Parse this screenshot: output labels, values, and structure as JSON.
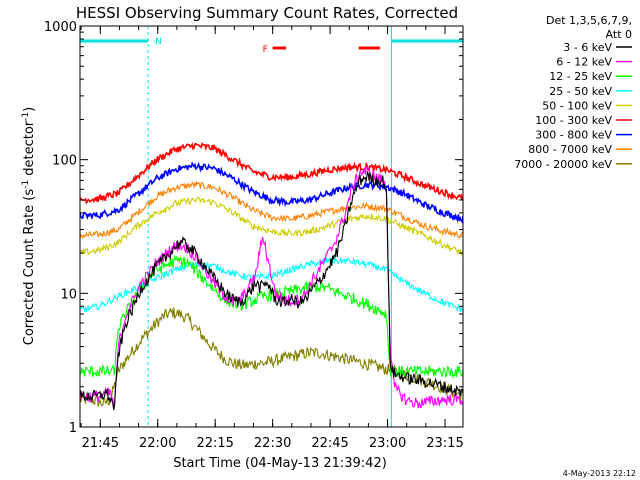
{
  "chart_data": {
    "type": "line",
    "title": "HESSI Observing Summary Count Rates, Corrected",
    "xlabel": "Start Time (04-May-13 21:39:42)",
    "ylabel": "Corrected Count Rate (s⁻¹ detector⁻¹)",
    "ylabel_parts": [
      "Corrected Count Rate (s",
      "-1",
      " detector",
      "-1",
      ")"
    ],
    "yscale": "log",
    "ylim": [
      1,
      1000
    ],
    "xlim_minutes": [
      0,
      100
    ],
    "x_ticks": [
      "21:45",
      "22:00",
      "22:15",
      "22:30",
      "22:45",
      "23:00",
      "23:15"
    ],
    "y_ticks": [
      "1",
      "10",
      "100",
      "1000"
    ],
    "legend_header": [
      "Det 1,3,5,6,7,9,",
      "Att 0"
    ],
    "legend_position": "right",
    "footer_date": "4-May-2013 22:12",
    "annotations": {
      "night_marker_label": "N",
      "flare_marker_label": "F",
      "night_intervals": [
        [
          "21:39:42",
          "21:57:30"
        ],
        [
          "23:01:00",
          "23:21:00"
        ]
      ],
      "flare_intervals": [
        [
          "22:30:00",
          "22:33:30"
        ],
        [
          "22:52:30",
          "22:58:00"
        ]
      ],
      "night_color": "#00e0e0",
      "flare_color": "#ff0000"
    },
    "series": [
      {
        "name": "3 - 6 keV",
        "color": "#000000",
        "points": [
          [
            0,
            1.7
          ],
          [
            5,
            1.7
          ],
          [
            7,
            1.8
          ],
          [
            9,
            1.4
          ],
          [
            10,
            3.5
          ],
          [
            12,
            6
          ],
          [
            14,
            8
          ],
          [
            16,
            11
          ],
          [
            18,
            13
          ],
          [
            20,
            16
          ],
          [
            22,
            18
          ],
          [
            24,
            21
          ],
          [
            26,
            24
          ],
          [
            28,
            23
          ],
          [
            30,
            20
          ],
          [
            32,
            17
          ],
          [
            34,
            14
          ],
          [
            36,
            12
          ],
          [
            38,
            10
          ],
          [
            40,
            9
          ],
          [
            42,
            8.5
          ],
          [
            44,
            10
          ],
          [
            46,
            12
          ],
          [
            47,
            11
          ],
          [
            49,
            12
          ],
          [
            51,
            9
          ],
          [
            53,
            8.5
          ],
          [
            55,
            9
          ],
          [
            57,
            8.5
          ],
          [
            59,
            9
          ],
          [
            61,
            11
          ],
          [
            63,
            13
          ],
          [
            65,
            16
          ],
          [
            67,
            20
          ],
          [
            69,
            30
          ],
          [
            71,
            50
          ],
          [
            73,
            70
          ],
          [
            75,
            75
          ],
          [
            77,
            70
          ],
          [
            79,
            70
          ],
          [
            80,
            62
          ],
          [
            81,
            3
          ],
          [
            82,
            2.5
          ],
          [
            86,
            2.3
          ],
          [
            90,
            2.2
          ],
          [
            95,
            2
          ],
          [
            100,
            1.8
          ]
        ]
      },
      {
        "name": "6 - 12 keV",
        "color": "#ff00ff",
        "points": [
          [
            0,
            1.7
          ],
          [
            5,
            1.7
          ],
          [
            8,
            1.8
          ],
          [
            9,
            1.4
          ],
          [
            10,
            4
          ],
          [
            12,
            7
          ],
          [
            14,
            9
          ],
          [
            16,
            12
          ],
          [
            18,
            14
          ],
          [
            20,
            17
          ],
          [
            22,
            19
          ],
          [
            24,
            22
          ],
          [
            26,
            23
          ],
          [
            28,
            22
          ],
          [
            30,
            19
          ],
          [
            32,
            16
          ],
          [
            34,
            13
          ],
          [
            36,
            11
          ],
          [
            38,
            9.5
          ],
          [
            40,
            8.5
          ],
          [
            42,
            9
          ],
          [
            44,
            11
          ],
          [
            46,
            14
          ],
          [
            47,
            22
          ],
          [
            48,
            26
          ],
          [
            49,
            18
          ],
          [
            51,
            10
          ],
          [
            53,
            9
          ],
          [
            55,
            8.8
          ],
          [
            57,
            9
          ],
          [
            59,
            10
          ],
          [
            61,
            13
          ],
          [
            63,
            16
          ],
          [
            65,
            20
          ],
          [
            67,
            26
          ],
          [
            69,
            38
          ],
          [
            71,
            60
          ],
          [
            73,
            80
          ],
          [
            75,
            82
          ],
          [
            77,
            75
          ],
          [
            79,
            70
          ],
          [
            80,
            60
          ],
          [
            81,
            4
          ],
          [
            82,
            2
          ],
          [
            85,
            1.6
          ],
          [
            88,
            1.5
          ],
          [
            95,
            1.6
          ],
          [
            100,
            1.6
          ]
        ]
      },
      {
        "name": "12 - 25 keV",
        "color": "#00ff00",
        "points": [
          [
            0,
            2.6
          ],
          [
            7,
            2.6
          ],
          [
            9,
            2.6
          ],
          [
            10,
            5.5
          ],
          [
            12,
            7
          ],
          [
            14,
            9
          ],
          [
            16,
            11
          ],
          [
            18,
            13
          ],
          [
            20,
            15
          ],
          [
            22,
            16
          ],
          [
            24,
            17
          ],
          [
            26,
            17.5
          ],
          [
            28,
            17
          ],
          [
            30,
            15
          ],
          [
            32,
            13
          ],
          [
            34,
            11.5
          ],
          [
            36,
            10
          ],
          [
            38,
            9
          ],
          [
            40,
            8.5
          ],
          [
            42,
            8.2
          ],
          [
            44,
            8.5
          ],
          [
            46,
            9
          ],
          [
            48,
            9.5
          ],
          [
            50,
            9.8
          ],
          [
            52,
            10
          ],
          [
            54,
            10.2
          ],
          [
            56,
            10.5
          ],
          [
            58,
            10.8
          ],
          [
            60,
            11
          ],
          [
            62,
            11.2
          ],
          [
            64,
            11
          ],
          [
            66,
            10.5
          ],
          [
            68,
            10
          ],
          [
            70,
            9.5
          ],
          [
            72,
            9
          ],
          [
            74,
            8.5
          ],
          [
            76,
            8
          ],
          [
            78,
            7.5
          ],
          [
            80,
            7
          ],
          [
            81,
            2.6
          ],
          [
            85,
            2.6
          ],
          [
            90,
            2.6
          ],
          [
            95,
            2.6
          ],
          [
            100,
            2.6
          ]
        ]
      },
      {
        "name": "25 - 50 keV",
        "color": "#00ffff",
        "points": [
          [
            0,
            7.5
          ],
          [
            5,
            8
          ],
          [
            10,
            9.5
          ],
          [
            15,
            11
          ],
          [
            20,
            13
          ],
          [
            25,
            15
          ],
          [
            30,
            16.5
          ],
          [
            35,
            16
          ],
          [
            40,
            14
          ],
          [
            45,
            13
          ],
          [
            50,
            13.5
          ],
          [
            55,
            15
          ],
          [
            60,
            16.5
          ],
          [
            65,
            17.5
          ],
          [
            70,
            17.5
          ],
          [
            75,
            16.5
          ],
          [
            80,
            15
          ],
          [
            85,
            12
          ],
          [
            90,
            10
          ],
          [
            95,
            8.5
          ],
          [
            100,
            7.5
          ]
        ]
      },
      {
        "name": "50 - 100 keV",
        "color": "#cccc00",
        "points": [
          [
            0,
            20
          ],
          [
            5,
            21
          ],
          [
            10,
            24
          ],
          [
            15,
            32
          ],
          [
            20,
            40
          ],
          [
            25,
            47
          ],
          [
            30,
            50
          ],
          [
            35,
            48
          ],
          [
            40,
            40
          ],
          [
            45,
            32
          ],
          [
            50,
            29
          ],
          [
            55,
            28
          ],
          [
            60,
            29
          ],
          [
            65,
            32
          ],
          [
            70,
            36
          ],
          [
            75,
            38
          ],
          [
            80,
            36
          ],
          [
            85,
            31
          ],
          [
            90,
            27
          ],
          [
            95,
            23
          ],
          [
            100,
            20
          ]
        ]
      },
      {
        "name": "100 - 300 keV",
        "color": "#ff0000",
        "points": [
          [
            0,
            50
          ],
          [
            5,
            51
          ],
          [
            10,
            56
          ],
          [
            15,
            75
          ],
          [
            20,
            100
          ],
          [
            25,
            120
          ],
          [
            30,
            128
          ],
          [
            35,
            122
          ],
          [
            40,
            100
          ],
          [
            45,
            82
          ],
          [
            50,
            74
          ],
          [
            55,
            74
          ],
          [
            60,
            78
          ],
          [
            65,
            84
          ],
          [
            70,
            88
          ],
          [
            75,
            88
          ],
          [
            80,
            84
          ],
          [
            85,
            74
          ],
          [
            90,
            64
          ],
          [
            95,
            57
          ],
          [
            100,
            51
          ]
        ]
      },
      {
        "name": "300 - 800 keV",
        "color": "#0000ff",
        "points": [
          [
            0,
            38
          ],
          [
            5,
            38.5
          ],
          [
            10,
            42
          ],
          [
            15,
            55
          ],
          [
            20,
            72
          ],
          [
            25,
            85
          ],
          [
            30,
            90
          ],
          [
            35,
            86
          ],
          [
            40,
            72
          ],
          [
            45,
            58
          ],
          [
            50,
            50
          ],
          [
            55,
            48
          ],
          [
            60,
            50
          ],
          [
            65,
            56
          ],
          [
            70,
            62
          ],
          [
            75,
            65
          ],
          [
            80,
            63
          ],
          [
            85,
            55
          ],
          [
            90,
            46
          ],
          [
            95,
            40
          ],
          [
            100,
            36
          ]
        ]
      },
      {
        "name": "800 - 7000 keV",
        "color": "#ff8000",
        "points": [
          [
            0,
            27
          ],
          [
            5,
            27.5
          ],
          [
            10,
            30
          ],
          [
            15,
            40
          ],
          [
            20,
            53
          ],
          [
            25,
            62
          ],
          [
            30,
            65
          ],
          [
            35,
            62
          ],
          [
            40,
            52
          ],
          [
            45,
            42
          ],
          [
            50,
            37
          ],
          [
            55,
            36
          ],
          [
            60,
            38
          ],
          [
            65,
            41
          ],
          [
            70,
            44
          ],
          [
            75,
            45
          ],
          [
            80,
            43
          ],
          [
            85,
            37
          ],
          [
            90,
            32
          ],
          [
            95,
            29
          ],
          [
            100,
            27
          ]
        ]
      },
      {
        "name": "7000 - 20000 keV",
        "color": "#808000",
        "points": [
          [
            0,
            1.6
          ],
          [
            3,
            1.6
          ],
          [
            6,
            1.5
          ],
          [
            8,
            1.6
          ],
          [
            10,
            2.6
          ],
          [
            12,
            3.2
          ],
          [
            14,
            3.8
          ],
          [
            16,
            4.5
          ],
          [
            18,
            5.2
          ],
          [
            20,
            6
          ],
          [
            22,
            6.8
          ],
          [
            24,
            7.2
          ],
          [
            26,
            7
          ],
          [
            28,
            6.5
          ],
          [
            30,
            5.6
          ],
          [
            32,
            4.8
          ],
          [
            34,
            4.1
          ],
          [
            36,
            3.6
          ],
          [
            38,
            3.2
          ],
          [
            40,
            3
          ],
          [
            42,
            2.9
          ],
          [
            44,
            2.9
          ],
          [
            46,
            3
          ],
          [
            48,
            3
          ],
          [
            50,
            3.1
          ],
          [
            52,
            3.2
          ],
          [
            54,
            3.3
          ],
          [
            56,
            3.4
          ],
          [
            58,
            3.5
          ],
          [
            60,
            3.6
          ],
          [
            62,
            3.6
          ],
          [
            64,
            3.5
          ],
          [
            66,
            3.4
          ],
          [
            68,
            3.3
          ],
          [
            70,
            3.2
          ],
          [
            72,
            3.1
          ],
          [
            74,
            3
          ],
          [
            76,
            2.9
          ],
          [
            78,
            2.8
          ],
          [
            80,
            2.7
          ],
          [
            82,
            2.6
          ],
          [
            84,
            2.5
          ],
          [
            86,
            2.4
          ],
          [
            88,
            2.3
          ],
          [
            90,
            2.2
          ],
          [
            92,
            2.1
          ],
          [
            94,
            2
          ],
          [
            96,
            1.9
          ],
          [
            98,
            1.8
          ],
          [
            100,
            1.7
          ]
        ]
      }
    ]
  }
}
